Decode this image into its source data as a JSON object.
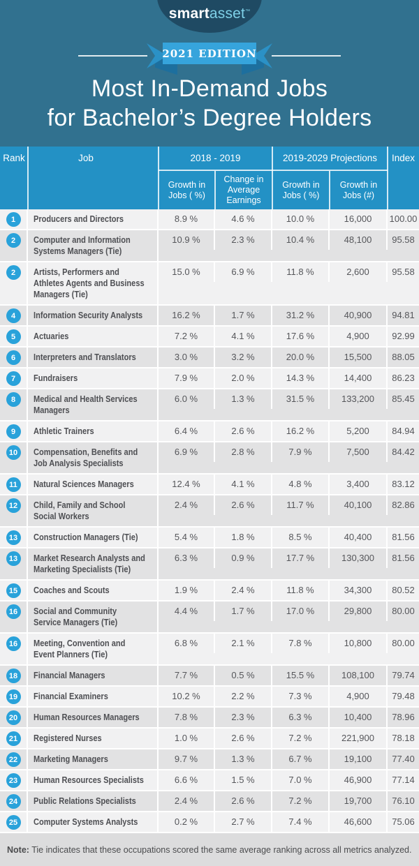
{
  "colors": {
    "page_teal": "#31718f",
    "navy_oval": "#1f4a63",
    "logo_asset_blue": "#7fd1e8",
    "ribbon_blue": "#36a4dc",
    "ribbon_tail_blue": "#2b91c6",
    "ribbon_fold_blue": "#1d6f9e",
    "table_header_blue": "#2391c5",
    "rank_circle_blue": "#29a2da",
    "row_light_gray": "#f1f1f2",
    "row_dark_gray": "#e2e2e3",
    "footer_gray": "#dcdcdd",
    "job_text": "#4e4f53",
    "value_text": "#55565a"
  },
  "logo": {
    "smart": "smart",
    "asset": "asset",
    "tm": "™"
  },
  "badge": {
    "label": "2021 EDITION"
  },
  "title": {
    "line1": "Most In-Demand Jobs",
    "line2": "for Bachelor’s Degree Holders"
  },
  "table": {
    "col_rank": "Rank",
    "col_job": "Job",
    "group_2018": "2018 - 2019",
    "group_projections": "2019-2029 Projections",
    "col_index": "Index",
    "sub_growth_pct_2018": "Growth in Jobs ( %)",
    "sub_change_earnings": "Change in Average Earnings",
    "sub_growth_pct_proj": "Growth in Jobs ( %)",
    "sub_growth_num_proj": "Growth in Jobs (#)"
  },
  "chart_data": {
    "type": "table",
    "title": "Most In-Demand Jobs for Bachelor’s Degree Holders",
    "subtitle": "2021 EDITION",
    "columns": [
      "Rank",
      "Job",
      "2018 - 2019 Growth in Jobs ( %)",
      "2018 - 2019 Change in Average Earnings",
      "2019-2029 Projections Growth in Jobs ( %)",
      "2019-2029 Projections Growth in Jobs (#)",
      "Index"
    ],
    "rows": [
      [
        "1",
        "Producers and Directors",
        "8.9 %",
        "4.6 %",
        "10.0 %",
        "16,000",
        "100.00"
      ],
      [
        "2",
        "Computer and Information\nSystems Managers (Tie)",
        "10.9 %",
        "2.3 %",
        "10.4 %",
        "48,100",
        "95.58"
      ],
      [
        "2",
        "Artists, Performers and\nAthletes Agents and Business\nManagers (Tie)",
        "15.0 %",
        "6.9 %",
        "11.8 %",
        "2,600",
        "95.58"
      ],
      [
        "4",
        "Information Security Analysts",
        "16.2 %",
        "1.7 %",
        "31.2 %",
        "40,900",
        "94.81"
      ],
      [
        "5",
        "Actuaries",
        "7.2 %",
        "4.1 %",
        "17.6 %",
        "4,900",
        "92.99"
      ],
      [
        "6",
        "Interpreters and Translators",
        "3.0 %",
        "3.2 %",
        "20.0 %",
        "15,500",
        "88.05"
      ],
      [
        "7",
        "Fundraisers",
        "7.9 %",
        "2.0 %",
        "14.3 %",
        "14,400",
        "86.23"
      ],
      [
        "8",
        "Medical and Health Services\nManagers",
        "6.0 %",
        "1.3 %",
        "31.5 %",
        "133,200",
        "85.45"
      ],
      [
        "9",
        "Athletic Trainers",
        "6.4 %",
        "2.6 %",
        "16.2 %",
        "5,200",
        "84.94"
      ],
      [
        "10",
        "Compensation, Benefits and\nJob Analysis Specialists",
        "6.9 %",
        "2.8 %",
        "7.9 %",
        "7,500",
        "84.42"
      ],
      [
        "11",
        "Natural Sciences Managers",
        "12.4 %",
        "4.1 %",
        "4.8 %",
        "3,400",
        "83.12"
      ],
      [
        "12",
        "Child, Family and School\nSocial Workers",
        "2.4 %",
        "2.6 %",
        "11.7 %",
        "40,100",
        "82.86"
      ],
      [
        "13",
        "Construction Managers (Tie)",
        "5.4 %",
        "1.8 %",
        "8.5 %",
        "40,400",
        "81.56"
      ],
      [
        "13",
        "Market Research Analysts and\nMarketing Specialists (Tie)",
        "6.3 %",
        "0.9 %",
        "17.7 %",
        "130,300",
        "81.56"
      ],
      [
        "15",
        "Coaches and Scouts",
        "1.9 %",
        "2.4 %",
        "11.8 %",
        "34,300",
        "80.52"
      ],
      [
        "16",
        "Social and Community\nService Managers (Tie)",
        "4.4 %",
        "1.7 %",
        "17.0 %",
        "29,800",
        "80.00"
      ],
      [
        "16",
        "Meeting, Convention and\nEvent Planners (Tie)",
        "6.8 %",
        "2.1 %",
        "7.8 %",
        "10,800",
        "80.00"
      ],
      [
        "18",
        "Financial Managers",
        "7.7 %",
        "0.5 %",
        "15.5 %",
        "108,100",
        "79.74"
      ],
      [
        "19",
        "Financial Examiners",
        "10.2 %",
        "2.2 %",
        "7.3 %",
        "4,900",
        "79.48"
      ],
      [
        "20",
        "Human Resources Managers",
        "7.8 %",
        "2.3 %",
        "6.3 %",
        "10,400",
        "78.96"
      ],
      [
        "21",
        "Registered Nurses",
        "1.0 %",
        "2.6 %",
        "7.2 %",
        "221,900",
        "78.18"
      ],
      [
        "22",
        "Marketing Managers",
        "9.7 %",
        "1.3 %",
        "6.7 %",
        "19,100",
        "77.40"
      ],
      [
        "23",
        "Human Resources Specialists",
        "6.6 %",
        "1.5 %",
        "7.0 %",
        "46,900",
        "77.14"
      ],
      [
        "24",
        "Public Relations Specialists",
        "2.4 %",
        "2.6 %",
        "7.2 %",
        "19,700",
        "76.10"
      ],
      [
        "25",
        "Computer Systems Analysts",
        "0.2 %",
        "2.7 %",
        "7.4 %",
        "46,600",
        "75.06"
      ]
    ]
  },
  "note": {
    "label": "Note:",
    "text": "Tie indicates that these occupations scored the same average ranking across all metrics analyzed."
  }
}
